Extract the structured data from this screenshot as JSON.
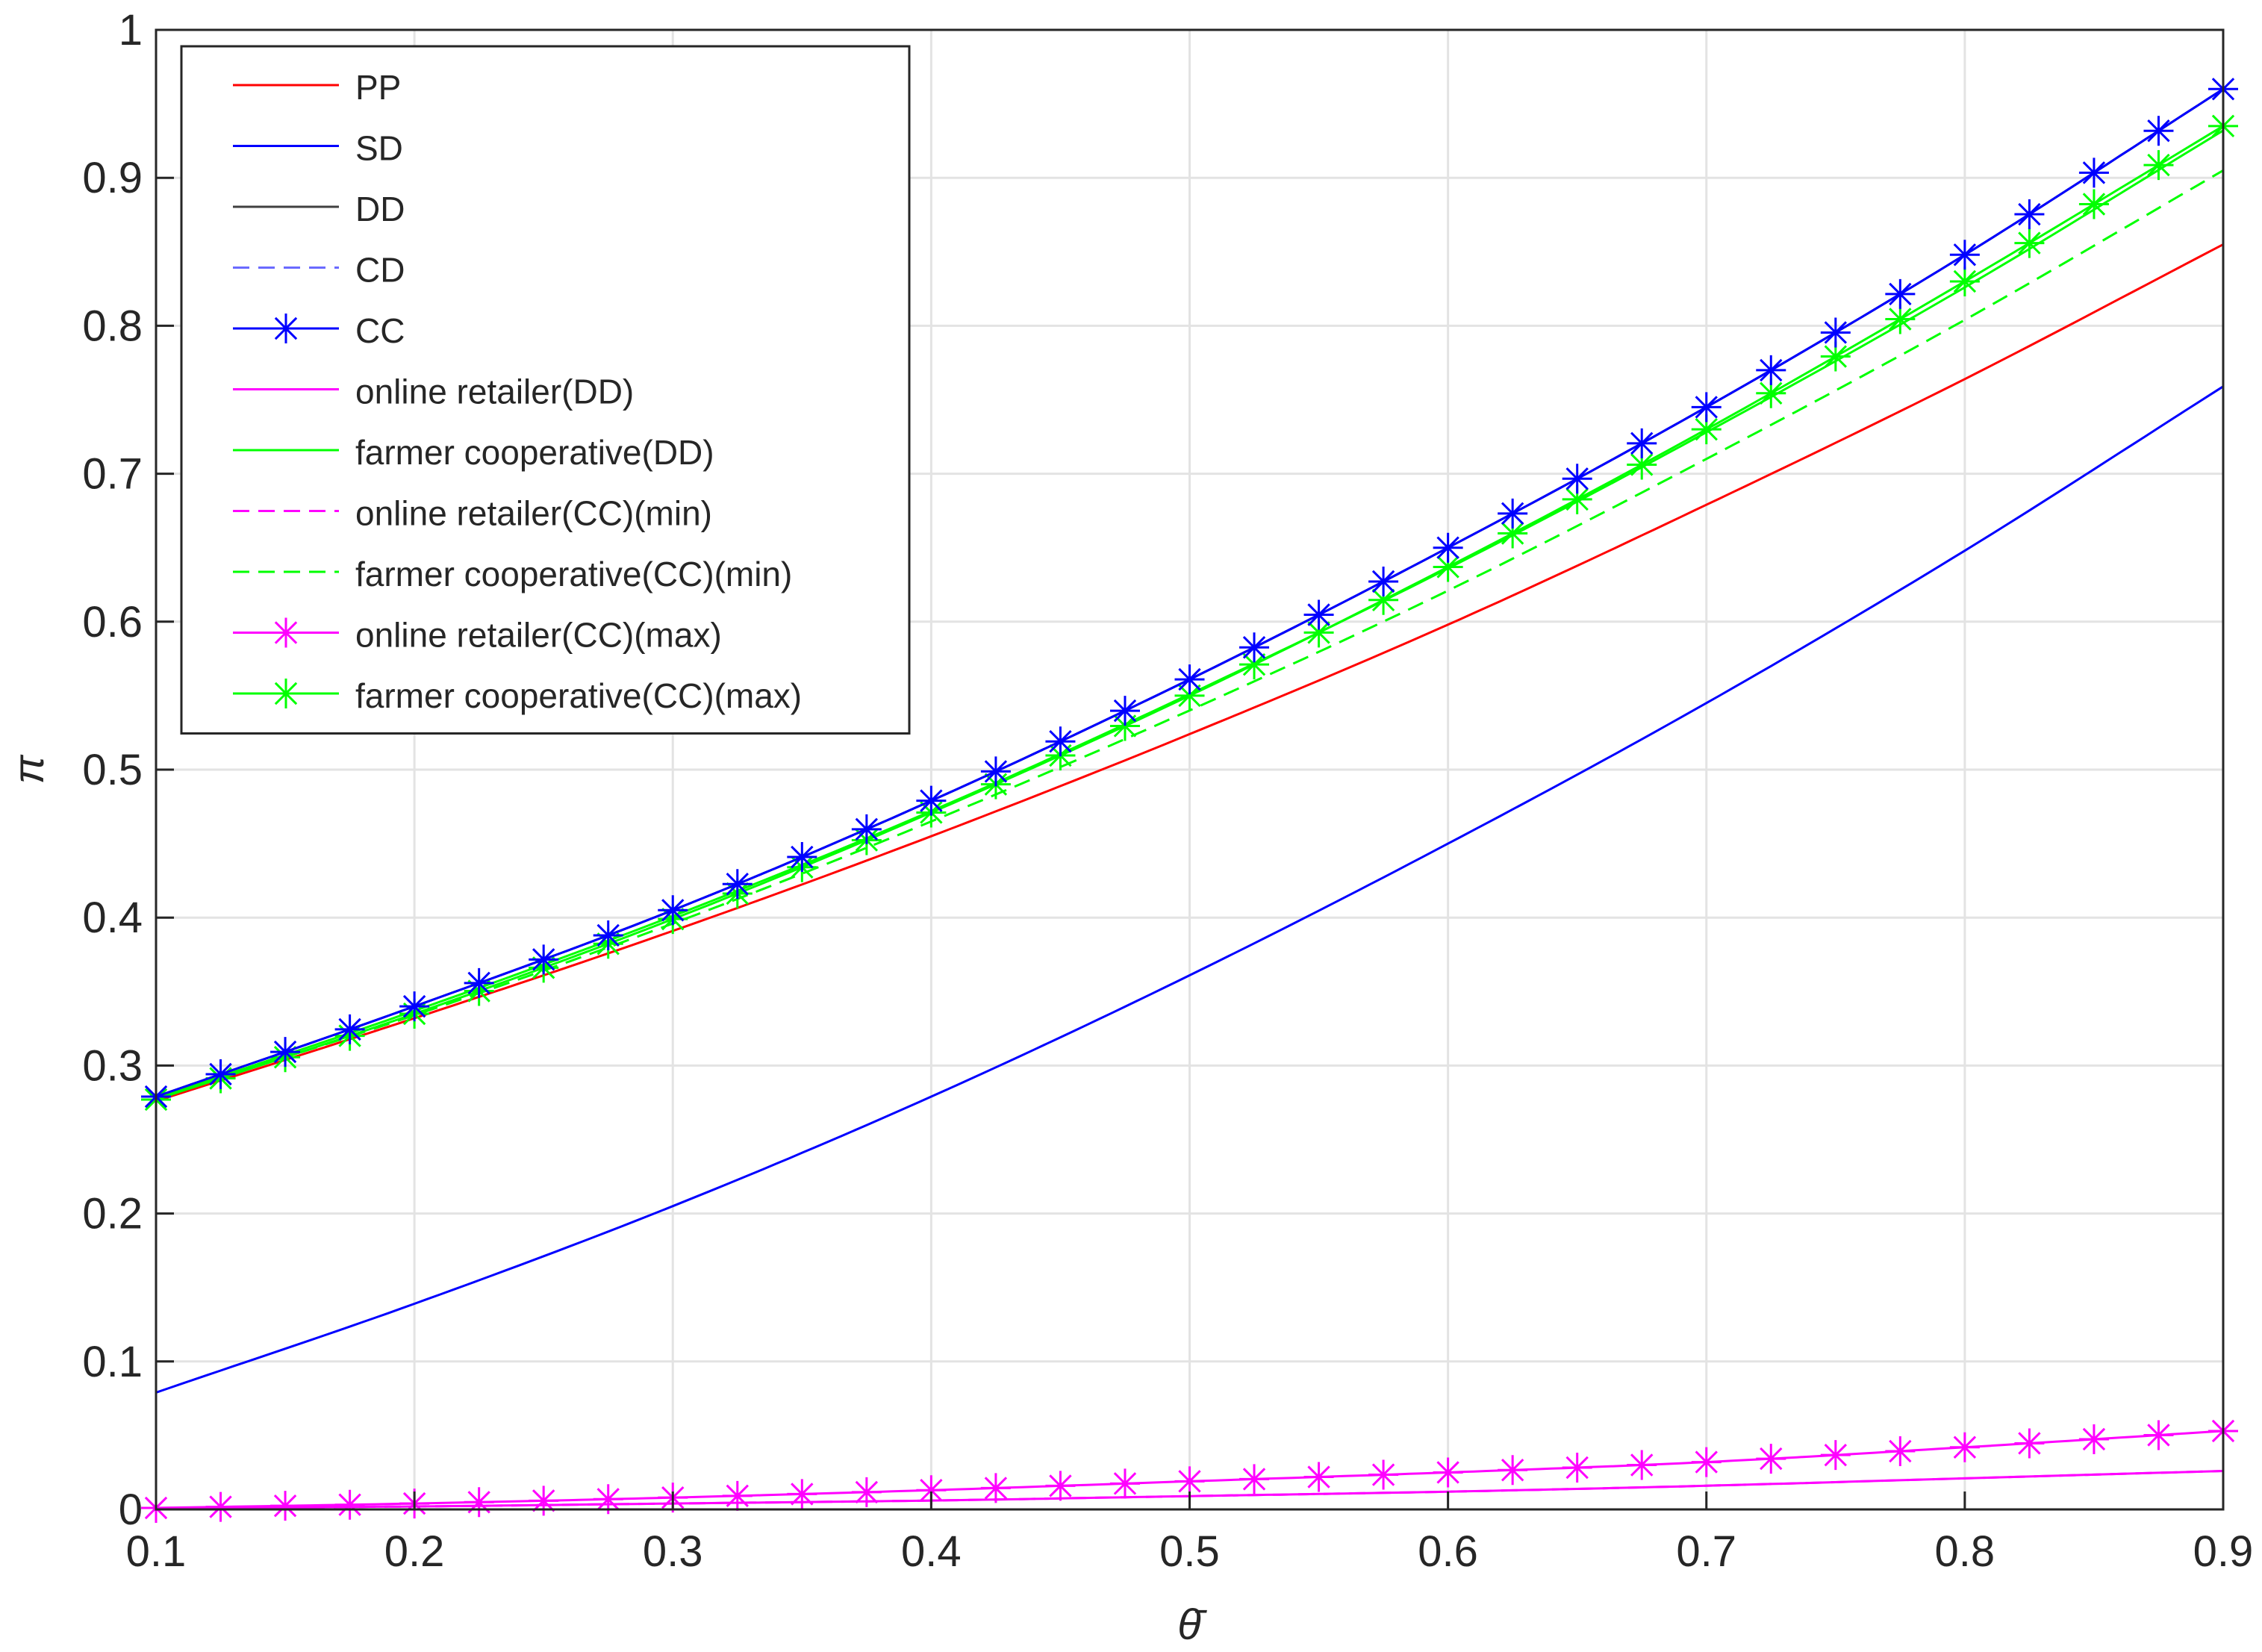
{
  "chart_data": {
    "type": "line",
    "xlabel": "θ̄",
    "ylabel": "π",
    "xlim": [
      0.1,
      0.9
    ],
    "ylim": [
      0,
      1
    ],
    "xticks": [
      "0.1",
      "0.2",
      "0.3",
      "0.4",
      "0.5",
      "0.6",
      "0.7",
      "0.8",
      "0.9"
    ],
    "yticks": [
      "0",
      "0.1",
      "0.2",
      "0.3",
      "0.4",
      "0.5",
      "0.6",
      "0.7",
      "0.8",
      "0.9",
      "1"
    ],
    "grid": true,
    "legend_position": "top-left",
    "x": [
      0.1,
      0.2,
      0.3,
      0.4,
      0.5,
      0.6,
      0.7,
      0.8,
      0.9
    ],
    "series": [
      {
        "name": "PP",
        "color": "#ff0000",
        "dash": "solid",
        "marker": "none",
        "values": [
          0.276,
          0.332,
          0.391,
          0.455,
          0.524,
          0.598,
          0.679,
          0.764,
          0.855
        ]
      },
      {
        "name": "SD",
        "color": "#0000ff",
        "dash": "solid",
        "marker": "none",
        "values": [
          0.079,
          0.139,
          0.205,
          0.279,
          0.361,
          0.45,
          0.545,
          0.648,
          0.759
        ]
      },
      {
        "name": "DD",
        "color": "#404040",
        "dash": "solid",
        "marker": "none",
        "values": [
          0.279,
          0.34,
          0.405,
          0.479,
          0.561,
          0.65,
          0.745,
          0.848,
          0.96
        ]
      },
      {
        "name": "CD",
        "color": "#6a6aff",
        "dash": "dashed",
        "marker": "none",
        "values": [
          0.279,
          0.34,
          0.405,
          0.479,
          0.561,
          0.65,
          0.745,
          0.848,
          0.96
        ]
      },
      {
        "name": "CC",
        "color": "#0000ff",
        "dash": "solid",
        "marker": "asterisk",
        "values": [
          0.279,
          0.34,
          0.405,
          0.479,
          0.561,
          0.65,
          0.745,
          0.848,
          0.96
        ]
      },
      {
        "name": "online retailer(DD)",
        "color": "#ff00ff",
        "dash": "solid",
        "marker": "none",
        "values": [
          0.001,
          0.002,
          0.004,
          0.006,
          0.009,
          0.012,
          0.016,
          0.021,
          0.026
        ]
      },
      {
        "name": "farmer cooperative(DD)",
        "color": "#00ff00",
        "dash": "solid",
        "marker": "none",
        "values": [
          0.278,
          0.337,
          0.401,
          0.472,
          0.551,
          0.636,
          0.728,
          0.826,
          0.932
        ]
      },
      {
        "name": "online retailer(CC)(min)",
        "color": "#ff00ff",
        "dash": "dashed",
        "marker": "none",
        "values": [
          0.001,
          0.002,
          0.004,
          0.006,
          0.009,
          0.012,
          0.016,
          0.021,
          0.026
        ]
      },
      {
        "name": "farmer cooperative(CC)(min)",
        "color": "#00ff00",
        "dash": "dashed",
        "marker": "none",
        "values": [
          0.278,
          0.334,
          0.396,
          0.465,
          0.54,
          0.621,
          0.71,
          0.804,
          0.905
        ]
      },
      {
        "name": "online retailer(CC)(max)",
        "color": "#ff00ff",
        "dash": "solid",
        "marker": "asterisk",
        "values": [
          0.001,
          0.004,
          0.008,
          0.013,
          0.019,
          0.025,
          0.032,
          0.042,
          0.053
        ]
      },
      {
        "name": "farmer cooperative(CC)(max)",
        "color": "#00ff00",
        "dash": "solid",
        "marker": "asterisk",
        "values": [
          0.277,
          0.335,
          0.399,
          0.471,
          0.55,
          0.637,
          0.73,
          0.83,
          0.935
        ]
      }
    ]
  }
}
